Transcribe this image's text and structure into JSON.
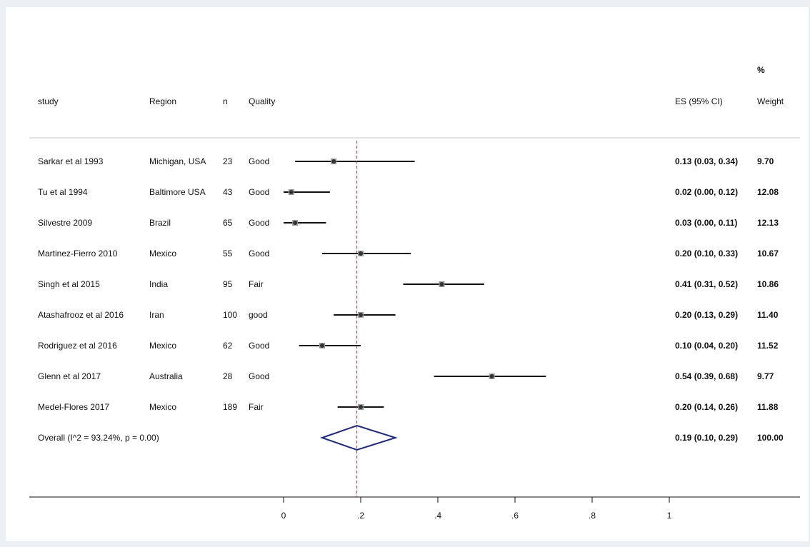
{
  "chart_data": {
    "type": "forest",
    "header": {
      "study": "study",
      "region": "Region",
      "n": "n",
      "quality": "Quality",
      "es": "ES (95% CI)",
      "weight_line1": "%",
      "weight_line2": "Weight"
    },
    "studies": [
      {
        "study": "Sarkar et al 1993",
        "region": "Michigan, USA",
        "n": "23",
        "quality": "Good",
        "es": 0.13,
        "lo": 0.03,
        "hi": 0.34,
        "es_text": "0.13 (0.03, 0.34)",
        "weight": "9.70"
      },
      {
        "study": "Tu et al 1994",
        "region": "Baltimore USA",
        "n": "43",
        "quality": "Good",
        "es": 0.02,
        "lo": 0.0,
        "hi": 0.12,
        "es_text": "0.02 (0.00, 0.12)",
        "weight": "12.08"
      },
      {
        "study": "Silvestre 2009",
        "region": "Brazil",
        "n": "65",
        "quality": "Good",
        "es": 0.03,
        "lo": 0.0,
        "hi": 0.11,
        "es_text": "0.03 (0.00, 0.11)",
        "weight": "12.13"
      },
      {
        "study": "Martinez-Fierro 2010",
        "region": "Mexico",
        "n": "55",
        "quality": "Good",
        "es": 0.2,
        "lo": 0.1,
        "hi": 0.33,
        "es_text": "0.20 (0.10, 0.33)",
        "weight": "10.67"
      },
      {
        "study": "Singh et al 2015",
        "region": "India",
        "n": "95",
        "quality": "Fair",
        "es": 0.41,
        "lo": 0.31,
        "hi": 0.52,
        "es_text": "0.41 (0.31, 0.52)",
        "weight": "10.86"
      },
      {
        "study": "Atashafrooz et al  2016",
        "region": "Iran",
        "n": "100",
        "quality": "good",
        "es": 0.2,
        "lo": 0.13,
        "hi": 0.29,
        "es_text": "0.20 (0.13, 0.29)",
        "weight": "11.40"
      },
      {
        "study": "Rodriguez et al 2016",
        "region": "Mexico",
        "n": "62",
        "quality": "Good",
        "es": 0.1,
        "lo": 0.04,
        "hi": 0.2,
        "es_text": "0.10 (0.04, 0.20)",
        "weight": "11.52"
      },
      {
        "study": "Glenn et al 2017",
        "region": "Australia",
        "n": "28",
        "quality": "Good",
        "es": 0.54,
        "lo": 0.39,
        "hi": 0.68,
        "es_text": "0.54 (0.39, 0.68)",
        "weight": "9.77"
      },
      {
        "study": "Medel-Flores 2017",
        "region": "Mexico",
        "n": "189",
        "quality": "Fair",
        "es": 0.2,
        "lo": 0.14,
        "hi": 0.26,
        "es_text": "0.20 (0.14, 0.26)",
        "weight": "11.88"
      }
    ],
    "overall": {
      "label": "Overall  (I^2 = 93.24%, p = 0.00)",
      "es": 0.19,
      "lo": 0.1,
      "hi": 0.29,
      "es_text": "0.19 (0.10, 0.29)",
      "weight": "100.00"
    },
    "x_axis": {
      "ticks": [
        0,
        0.2,
        0.4,
        0.6,
        0.8,
        1
      ],
      "tick_labels": [
        "0",
        ".2",
        ".4",
        ".6",
        ".8",
        "1"
      ],
      "xlim": [
        0,
        1
      ]
    },
    "xlabel": "",
    "ylabel": "",
    "grid": false,
    "colors": {
      "background": "#eaf0f3",
      "panel": "#ffffff",
      "ci_line": "#111111",
      "point_marker": "#333333",
      "ref_line": "#9b3a3a",
      "diamond": "#1f2a7a",
      "divider": "#c8c8c8"
    }
  }
}
